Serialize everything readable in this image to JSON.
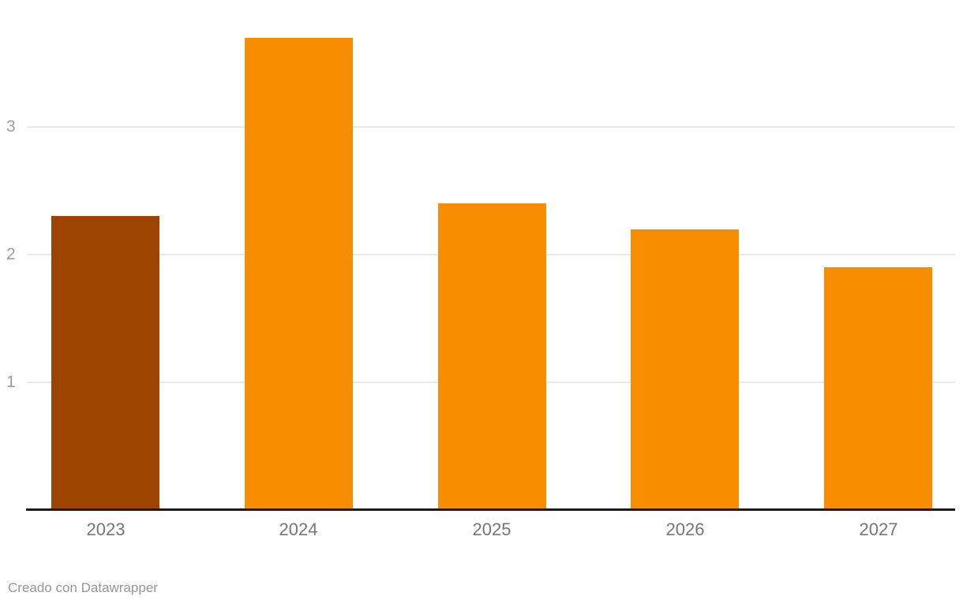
{
  "chart_data": {
    "type": "bar",
    "categories": [
      "2023",
      "2024",
      "2025",
      "2026",
      "2027"
    ],
    "values": [
      2.3,
      3.7,
      2.4,
      2.2,
      1.9
    ],
    "title": "",
    "xlabel": "",
    "ylabel": "",
    "ylim": [
      0,
      4
    ],
    "yticks": [
      1,
      2,
      3
    ],
    "grid": true,
    "legend": false,
    "bar_colors": [
      "#9d4500",
      "#f98d00",
      "#f98d00",
      "#f98d00",
      "#f98d00"
    ],
    "highlighted_category": "2023"
  },
  "colors": {
    "bar_default": "#f98d00",
    "bar_highlight": "#9d4500",
    "gridline": "#e8e8e8",
    "axis_line": "#1a1a1a",
    "y_tick_label": "#9c9c9c",
    "x_tick_label": "#757575",
    "attribution": "#969696",
    "background": "#ffffff"
  },
  "footer": {
    "attribution": "Creado con Datawrapper"
  }
}
